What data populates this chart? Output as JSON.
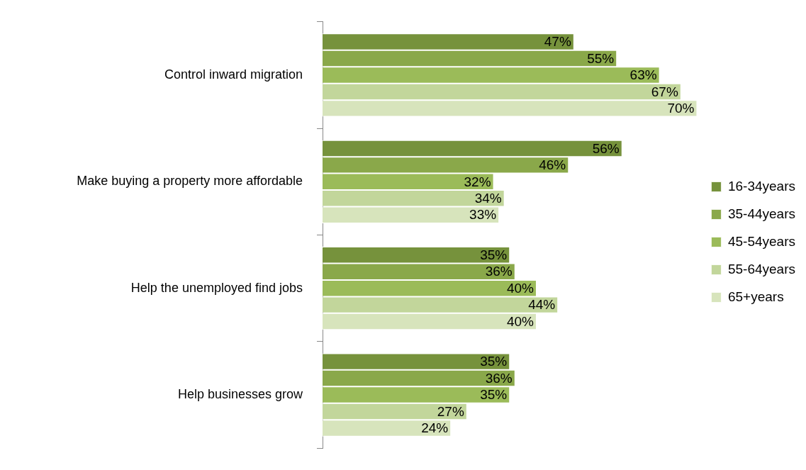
{
  "chart_data": {
    "type": "bar",
    "orientation": "horizontal",
    "categories": [
      "Control inward migration",
      "Make buying a property more affordable",
      "Help the unemployed find jobs",
      "Help businesses grow"
    ],
    "series": [
      {
        "name": "16-34years",
        "color": "#76923c",
        "values": [
          47,
          56,
          35,
          35
        ],
        "value_labels": [
          "47%",
          "56%",
          "35%",
          "35%"
        ]
      },
      {
        "name": "35-44years",
        "color": "#8aa84a",
        "values": [
          55,
          46,
          36,
          36
        ],
        "value_labels": [
          "55%",
          "46%",
          "36%",
          "36%"
        ]
      },
      {
        "name": "45-54years",
        "color": "#9bbb59",
        "values": [
          63,
          32,
          40,
          35
        ],
        "value_labels": [
          "63%",
          "32%",
          "40%",
          "35%"
        ]
      },
      {
        "name": "55-64years",
        "color": "#c2d69b",
        "values": [
          67,
          34,
          44,
          27
        ],
        "value_labels": [
          "67%",
          "34%",
          "44%",
          "27%"
        ]
      },
      {
        "name": "65+years",
        "color": "#d7e4bc",
        "values": [
          70,
          33,
          40,
          24
        ],
        "value_labels": [
          "70%",
          "33%",
          "40%",
          "24%"
        ]
      }
    ],
    "legend": "right",
    "grid": false
  }
}
